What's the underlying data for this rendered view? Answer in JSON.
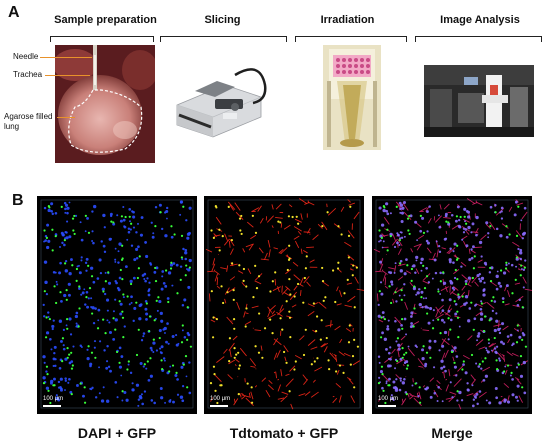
{
  "panel_a": {
    "letter": "A",
    "stages": [
      {
        "title": "Sample preparation"
      },
      {
        "title": "Slicing"
      },
      {
        "title": "Irradiation"
      },
      {
        "title": "Image Analysis"
      }
    ],
    "annotations": {
      "needle": "Needle",
      "trachea": "Trachea",
      "lung_line1": "Agarose filled",
      "lung_line2": "lung"
    }
  },
  "panel_b": {
    "letter": "B",
    "images": [
      {
        "caption": "DAPI + GFP",
        "scale": "100 μm"
      },
      {
        "caption": "Tdtomato + GFP",
        "scale": "100 μm"
      },
      {
        "caption": "Merge",
        "scale": "100 μm"
      }
    ]
  },
  "colors": {
    "accent_lead": "#e8922b",
    "dapi": "#2a4dff",
    "gfp": "#39ff3a",
    "tdtomato": "#ff2a1a"
  }
}
